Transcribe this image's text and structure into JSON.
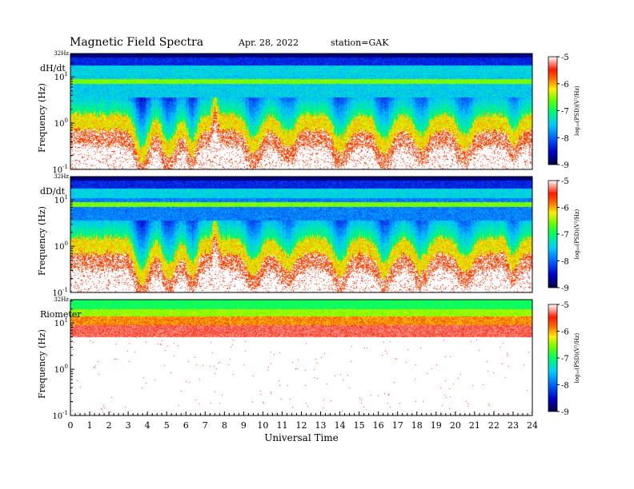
{
  "header": {
    "title": "Magnetic  Field  Spectra",
    "date": "Apr. 28, 2022",
    "station": "station=GAK"
  },
  "chart_data": [
    {
      "type": "heatmap",
      "label": "dH/dt",
      "ylabel": "Frequency  (Hz)",
      "top_label": "32Hz",
      "y_ticks": [
        {
          "base": "10",
          "exp": "-1",
          "value": 0.1
        },
        {
          "base": "10",
          "exp": "0",
          "value": 1
        },
        {
          "base": "10",
          "exp": "1",
          "value": 10
        }
      ],
      "ylim": [
        0.1,
        32
      ],
      "yscale": "log",
      "colorbar": {
        "ticks": [
          "-5",
          "-6",
          "-7",
          "-8",
          "-9"
        ],
        "label": "log₁₀(PSD)(V²/Hz)",
        "range": [
          -9,
          -5
        ]
      }
    },
    {
      "type": "heatmap",
      "label": "dD/dt",
      "ylabel": "Frequency  (Hz)",
      "top_label": "32Hz",
      "y_ticks": [
        {
          "base": "10",
          "exp": "-1",
          "value": 0.1
        },
        {
          "base": "10",
          "exp": "0",
          "value": 1
        },
        {
          "base": "10",
          "exp": "1",
          "value": 10
        }
      ],
      "ylim": [
        0.1,
        32
      ],
      "yscale": "log",
      "colorbar": {
        "ticks": [
          "-5",
          "-6",
          "-7",
          "-8",
          "-9"
        ],
        "label": "log₁₀(PSD)(V²/Hz)",
        "range": [
          -9,
          -5
        ]
      }
    },
    {
      "type": "heatmap",
      "label": "Riometer",
      "ylabel": "Frequency  (Hz)",
      "top_label": "32Hz",
      "y_ticks": [
        {
          "base": "10",
          "exp": "-1",
          "value": 0.1
        },
        {
          "base": "10",
          "exp": "0",
          "value": 1
        },
        {
          "base": "10",
          "exp": "1",
          "value": 10
        }
      ],
      "ylim": [
        0.1,
        32
      ],
      "yscale": "log",
      "colorbar": {
        "ticks": [
          "-5",
          "-6",
          "-7",
          "-8",
          "-9"
        ],
        "label": "log₁₀(PSD)(V²/Hz)",
        "range": [
          -9,
          -5
        ]
      }
    }
  ],
  "x_axis": {
    "label": "Universal Time",
    "ticks": [
      "0",
      "1",
      "2",
      "3",
      "4",
      "5",
      "6",
      "7",
      "8",
      "9",
      "10",
      "11",
      "12",
      "13",
      "14",
      "15",
      "16",
      "17",
      "18",
      "19",
      "20",
      "21",
      "22",
      "23",
      "24"
    ],
    "range": [
      0,
      24
    ]
  }
}
